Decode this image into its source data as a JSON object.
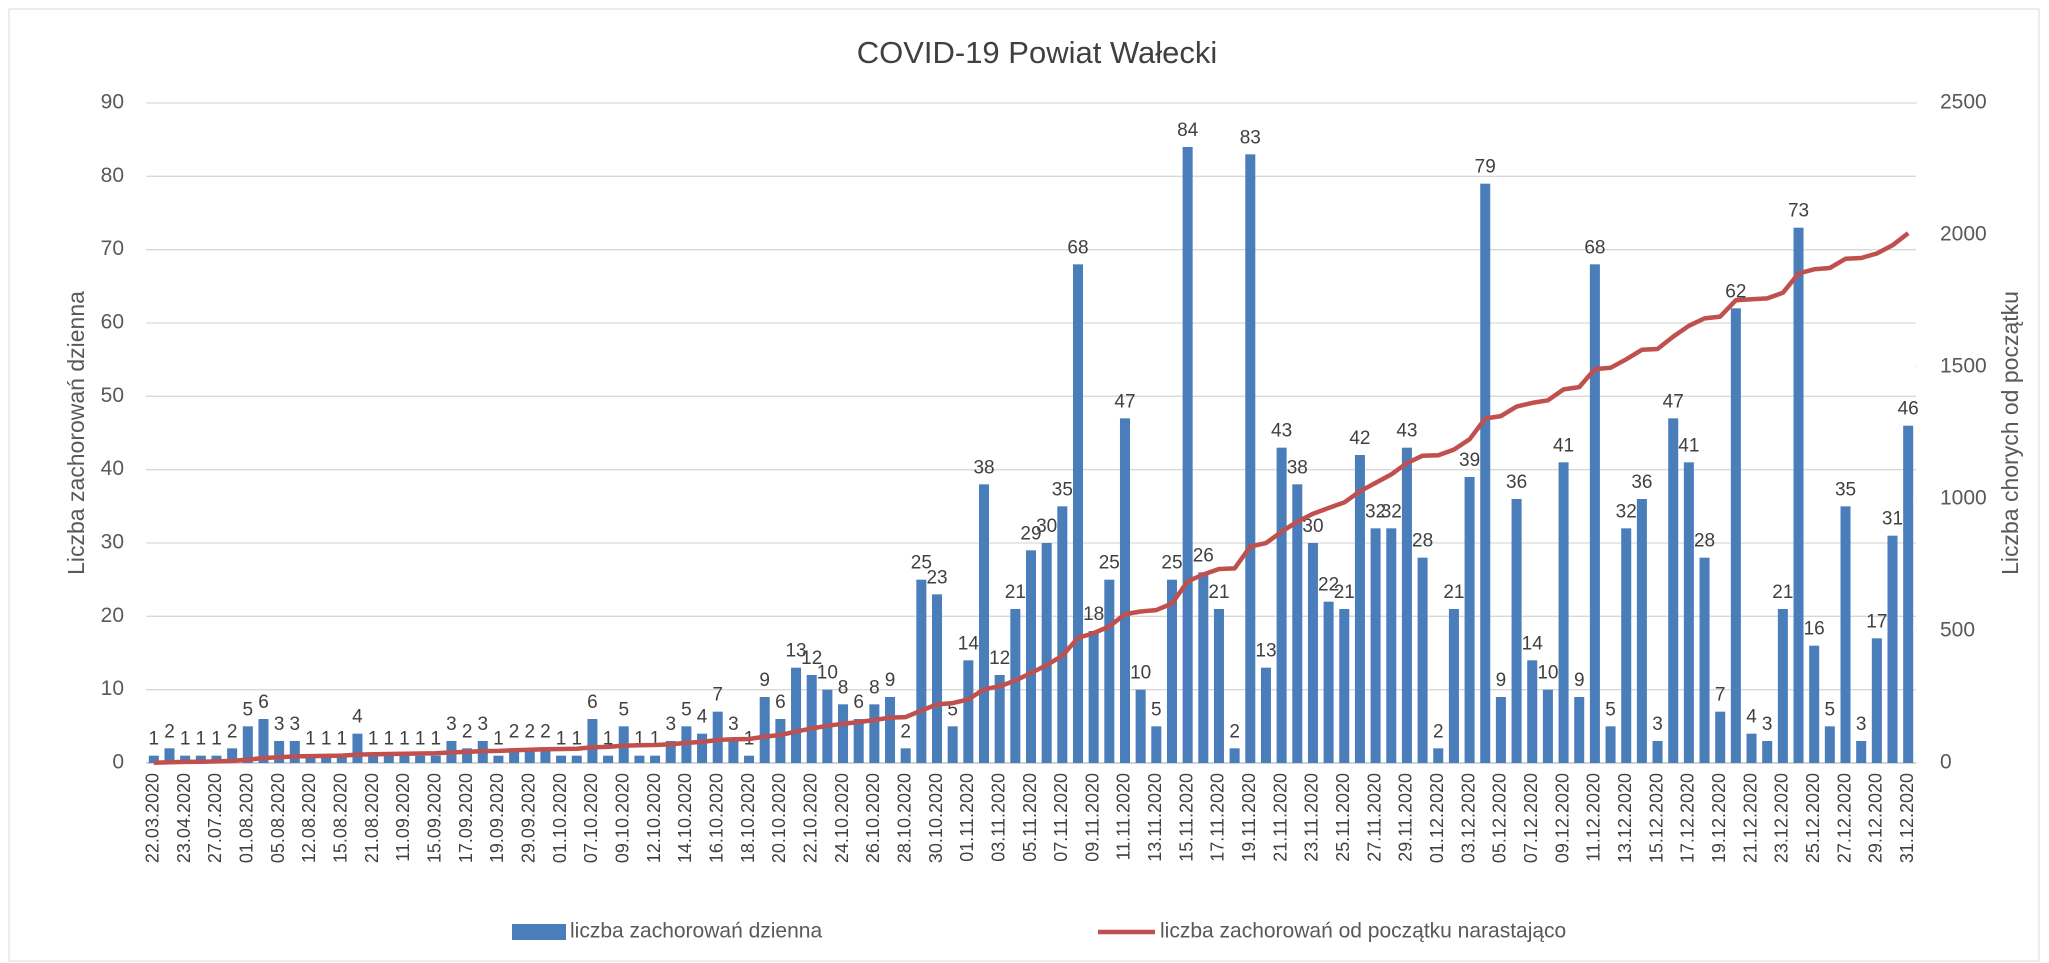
{
  "chart_data": {
    "type": "bar_line",
    "title": "COVID-19 Powiat Wałecki",
    "ylabel": "Liczba zachorowań dzienna",
    "y2label": "Liczba chorych od początku",
    "categories": [
      "22.03.2020",
      null,
      "23.04.2020",
      null,
      "27.07.2020",
      null,
      "01.08.2020",
      null,
      "05.08.2020",
      null,
      "12.08.2020",
      null,
      "15.08.2020",
      null,
      "21.08.2020",
      null,
      "11.09.2020",
      null,
      "15.09.2020",
      null,
      "17.09.2020",
      null,
      "19.09.2020",
      null,
      "29.09.2020",
      null,
      "01.10.2020",
      null,
      "07.10.2020",
      null,
      "09.10.2020",
      null,
      "12.10.2020",
      null,
      "14.10.2020",
      null,
      "16.10.2020",
      null,
      "18.10.2020",
      null,
      "20.10.2020",
      null,
      "22.10.2020",
      null,
      "24.10.2020",
      null,
      "26.10.2020",
      null,
      "28.10.2020",
      null,
      "30.10.2020",
      null,
      "01.11.2020",
      null,
      "03.11.2020",
      null,
      "05.11.2020",
      null,
      "07.11.2020",
      null,
      "09.11.2020",
      null,
      "11.11.2020",
      null,
      "13.11.2020",
      null,
      "15.11.2020",
      null,
      "17.11.2020",
      null,
      "19.11.2020",
      null,
      "21.11.2020",
      null,
      "23.11.2020",
      null,
      "25.11.2020",
      null,
      "27.11.2020",
      null,
      "29.11.2020",
      null,
      "01.12.2020",
      null,
      "03.12.2020",
      null,
      "05.12.2020",
      null,
      "07.12.2020",
      null,
      "09.12.2020",
      null,
      "11.12.2020",
      null,
      "13.12.2020",
      null,
      "15.12.2020",
      null,
      "17.12.2020",
      null,
      "19.12.2020",
      null,
      "21.12.2020",
      null,
      "23.12.2020",
      null,
      "25.12.2020",
      null,
      "27.12.2020",
      null,
      "29.12.2020",
      null,
      "31.12.2020"
    ],
    "series": [
      {
        "name": "liczba zachorowań dzienna",
        "color": "#4a7ebb",
        "values": [
          1,
          2,
          1,
          1,
          1,
          2,
          5,
          6,
          3,
          3,
          1,
          1,
          1,
          4,
          1,
          1,
          1,
          1,
          1,
          3,
          2,
          3,
          1,
          2,
          2,
          2,
          1,
          1,
          6,
          1,
          5,
          1,
          1,
          3,
          5,
          4,
          7,
          3,
          1,
          9,
          6,
          13,
          12,
          10,
          8,
          6,
          8,
          9,
          2,
          25,
          23,
          5,
          14,
          38,
          12,
          21,
          29,
          30,
          35,
          68,
          18,
          25,
          47,
          10,
          5,
          25,
          84,
          26,
          21,
          2,
          83,
          13,
          43,
          38,
          30,
          22,
          21,
          42,
          32,
          32,
          43,
          28,
          2,
          21,
          39,
          79,
          9,
          36,
          14,
          10,
          41,
          9,
          68,
          5,
          32,
          36,
          3,
          47,
          41,
          28,
          7,
          62,
          4,
          3,
          21,
          73,
          16,
          5,
          35,
          3,
          17,
          31,
          46
        ]
      },
      {
        "name": "liczba zachorowań od początku narastająco",
        "color": "#c0504d",
        "axis": "y2",
        "values": [
          1,
          3,
          4,
          5,
          6,
          8,
          13,
          19,
          22,
          25,
          26,
          27,
          28,
          32,
          33,
          34,
          35,
          36,
          37,
          40,
          42,
          45,
          46,
          48,
          50,
          52,
          53,
          54,
          60,
          61,
          66,
          67,
          68,
          71,
          76,
          80,
          87,
          90,
          91,
          100,
          106,
          119,
          131,
          141,
          149,
          155,
          163,
          172,
          174,
          199,
          222,
          227,
          241,
          279,
          291,
          312,
          341,
          371,
          406,
          474,
          492,
          517,
          564,
          574,
          579,
          604,
          688,
          714,
          735,
          737,
          820,
          833,
          876,
          914,
          944,
          966,
          987,
          1029,
          1061,
          1093,
          1136,
          1164,
          1166,
          1187,
          1226,
          1305,
          1314,
          1350,
          1364,
          1374,
          1415,
          1424,
          1492,
          1497,
          1529,
          1565,
          1568,
          1615,
          1656,
          1684,
          1691,
          1753,
          1757,
          1760,
          1781,
          1854,
          1870,
          1875,
          1910,
          1913,
          1930,
          1961,
          2007
        ]
      }
    ],
    "ylim": [
      0,
      90
    ],
    "yticks": [
      0,
      10,
      20,
      30,
      40,
      50,
      60,
      70,
      80,
      90
    ],
    "y2lim": [
      0,
      2500
    ],
    "y2ticks": [
      0,
      500,
      1000,
      1500,
      2000,
      2500
    ],
    "grid": true,
    "legend": "bottom"
  }
}
